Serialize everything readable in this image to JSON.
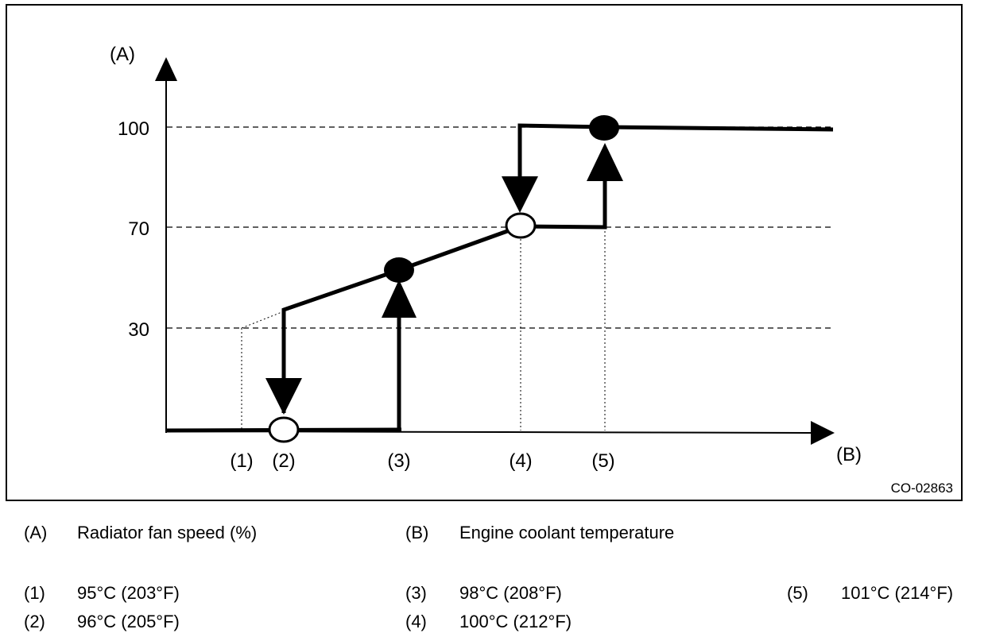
{
  "axis_a_label": "(A)",
  "axis_b_label": "(B)",
  "y_ticks": [
    "100",
    "70",
    "30"
  ],
  "x_markers": [
    "(1)",
    "(2)",
    "(3)",
    "(4)",
    "(5)"
  ],
  "figure_id": "CO-02863",
  "legend_axes": [
    {
      "key": "(A)",
      "text": "Radiator fan speed (%)"
    },
    {
      "key": "(B)",
      "text": "Engine coolant temperature"
    }
  ],
  "legend_points": [
    {
      "key": "(1)",
      "text": "95°C (203°F)"
    },
    {
      "key": "(2)",
      "text": "96°C (205°F)"
    },
    {
      "key": "(3)",
      "text": "98°C (208°F)"
    },
    {
      "key": "(4)",
      "text": "100°C (212°F)"
    },
    {
      "key": "(5)",
      "text": "101°C (214°F)"
    }
  ]
}
